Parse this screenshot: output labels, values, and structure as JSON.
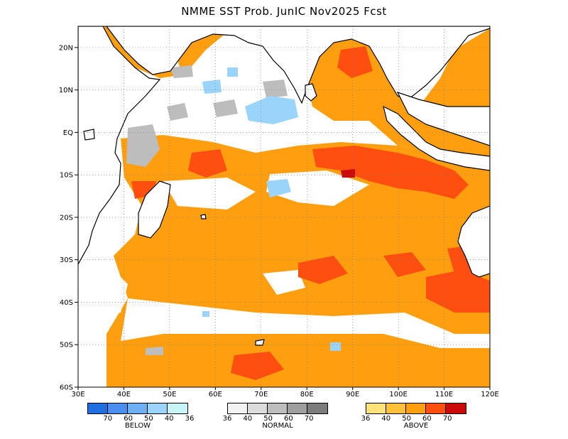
{
  "title": "NMME SST Prob. JunIC  Nov2025 Fcst",
  "map": {
    "region": "Indian Ocean",
    "lon_range": [
      30,
      120
    ],
    "lat_range": [
      -60,
      25
    ],
    "grid": "dotted",
    "lat_labels": [
      "20N",
      "10N",
      "EQ",
      "10S",
      "20S",
      "30S",
      "40S",
      "50S",
      "60S"
    ],
    "lat_values": [
      20,
      10,
      0,
      -10,
      -20,
      -30,
      -40,
      -50,
      -60
    ],
    "lon_labels": [
      "30E",
      "40E",
      "50E",
      "60E",
      "70E",
      "80E",
      "90E",
      "100E",
      "110E",
      "120E"
    ],
    "lon_values": [
      30,
      40,
      50,
      60,
      70,
      80,
      90,
      100,
      110,
      120
    ]
  },
  "legends": {
    "below": {
      "name": "BELOW",
      "colors": [
        "#1f6fe0",
        "#4a8ff0",
        "#6fb0f5",
        "#9ad4fa",
        "#c8f4f8"
      ],
      "ticks": [
        "70",
        "60",
        "50",
        "40",
        "36"
      ]
    },
    "normal": {
      "name": "NORMAL",
      "colors": [
        "#f2f2f2",
        "#dcdcdc",
        "#bdbdbd",
        "#9e9e9e",
        "#7c7c7c"
      ],
      "ticks": [
        "36",
        "40",
        "50",
        "60",
        "70"
      ]
    },
    "above": {
      "name": "ABOVE",
      "colors": [
        "#ffe27a",
        "#ffc03a",
        "#ff9f0f",
        "#ff4f10",
        "#cc0a0a"
      ],
      "ticks": [
        "36",
        "40",
        "50",
        "60",
        "70"
      ]
    }
  }
}
